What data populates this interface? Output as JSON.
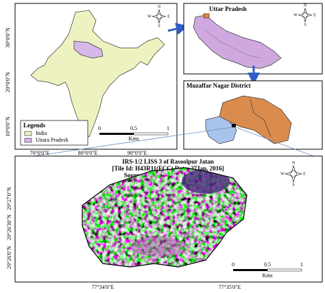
{
  "india_panel": {
    "lat_labels": [
      "30°0'0\"N",
      "20°0'0\"N",
      "10°0'0\"N"
    ],
    "lon_labels": [
      "70°0'0\"E",
      "80°0'0\"E",
      "90°0'0\"E"
    ],
    "legend": {
      "title": "Legends",
      "items": [
        "India",
        "Uttara Pradesh"
      ]
    },
    "scale": {
      "ticks": [
        "0",
        "0.5",
        "1"
      ],
      "unit": "Kms"
    }
  },
  "compass": {
    "north": "N",
    "south": "S",
    "east": "E",
    "west": "W"
  },
  "up_panel": {
    "title": "Uttar Pradesh"
  },
  "district_panel": {
    "title": "Muzaffar Nagar District"
  },
  "image_panel": {
    "title_lines": [
      "IRS-1/2 LISS 3 of Rasoolpur Jatan",
      "[Tile Id: H43R11(FCC) Date: 27Jan, 2016]",
      "Source: http://bhuvan.nrsc.gov.in"
    ],
    "lat_labels": [
      "29°27'0\"N",
      "29°26'30\"N",
      "29°26'0\"N"
    ],
    "lon_labels": [
      "77°34'0\"E",
      "77°35'0\"E"
    ],
    "scale": {
      "ticks": [
        "0",
        "0.5",
        "1"
      ],
      "unit": "Kms"
    }
  }
}
